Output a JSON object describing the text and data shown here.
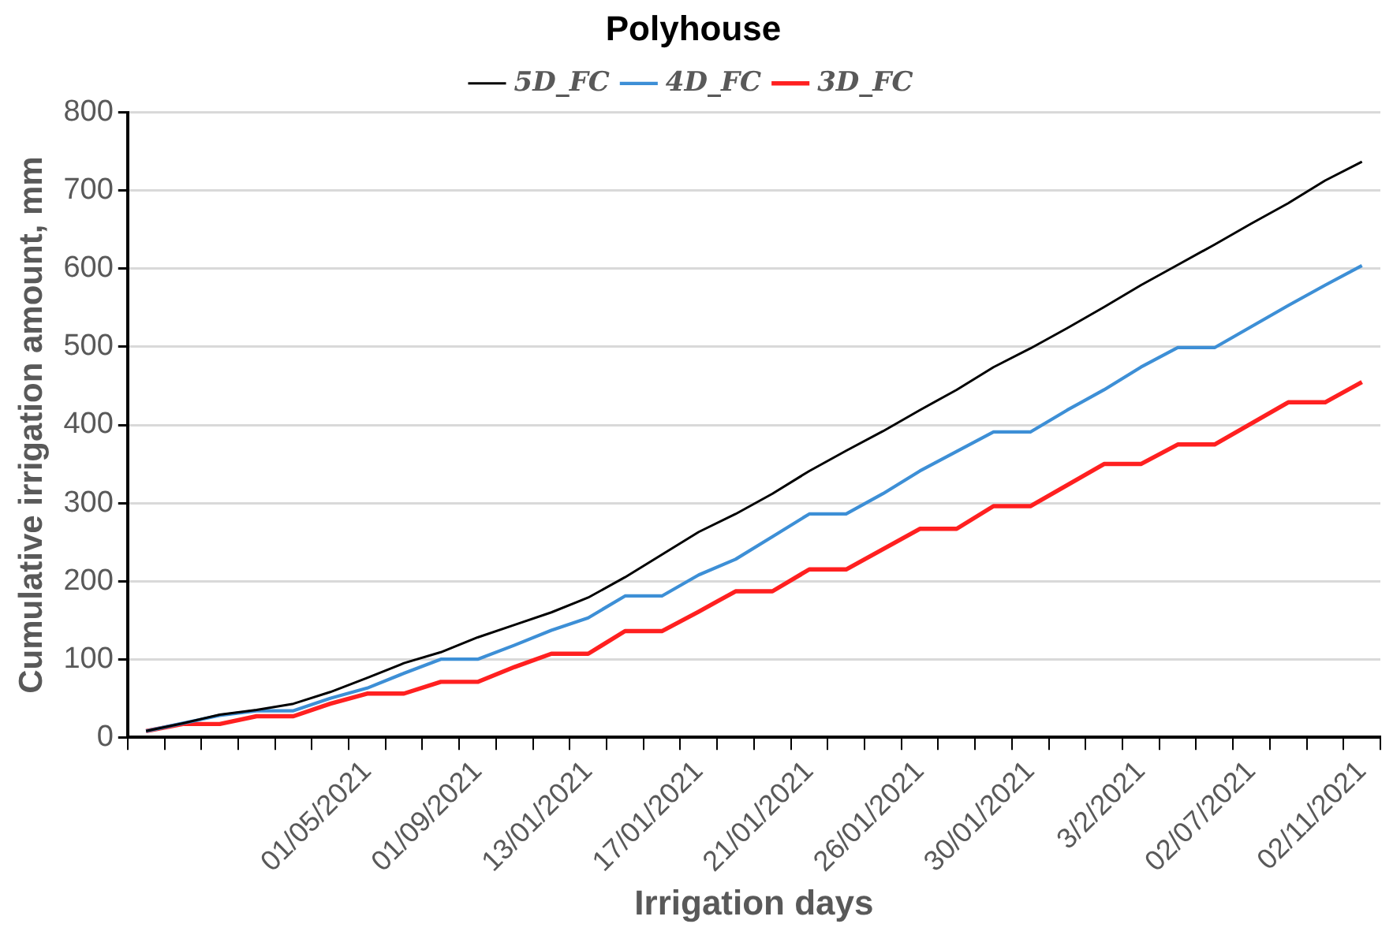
{
  "chart_data": {
    "type": "line",
    "title": "Polyhouse",
    "xlabel": "Irrigation days",
    "ylabel": "Cumulative irrigation amount, mm",
    "categories": [
      null,
      null,
      null,
      null,
      null,
      null,
      "01/05/2021",
      null,
      null,
      "01/09/2021",
      null,
      null,
      "13/01/2021",
      null,
      null,
      "17/01/2021",
      null,
      null,
      "21/01/2021",
      null,
      null,
      "26/01/2021",
      null,
      null,
      "30/01/2021",
      null,
      null,
      "3/2/2021",
      null,
      null,
      "02/07/2021",
      null,
      null,
      "02/11/2021"
    ],
    "series": [
      {
        "name": "5D_FC",
        "color": "#000000",
        "values": [
          8,
          18,
          29,
          35,
          43,
          58,
          76,
          95,
          109,
          128,
          144,
          160,
          179,
          205,
          234,
          263,
          286,
          312,
          341,
          367,
          392,
          419,
          445,
          474,
          498,
          524,
          551,
          579,
          605,
          631,
          658,
          684,
          713,
          737
        ]
      },
      {
        "name": "4D_FC",
        "color": "#3d8fd6",
        "values": [
          8,
          18,
          28,
          34,
          34,
          50,
          63,
          82,
          100,
          100,
          118,
          137,
          153,
          181,
          181,
          208,
          228,
          257,
          286,
          286,
          312,
          341,
          366,
          391,
          391,
          419,
          445,
          474,
          499,
          499,
          526,
          553,
          579,
          604
        ]
      },
      {
        "name": "3D_FC",
        "color": "#ff2020",
        "values": [
          8,
          17,
          17,
          27,
          27,
          43,
          56,
          56,
          71,
          71,
          90,
          107,
          107,
          136,
          136,
          161,
          187,
          187,
          215,
          215,
          241,
          267,
          267,
          296,
          296,
          323,
          350,
          350,
          375,
          375,
          402,
          429,
          429,
          455
        ]
      }
    ],
    "ylim": [
      0,
      800
    ],
    "yticks": [
      0,
      100,
      200,
      300,
      400,
      500,
      600,
      700,
      800
    ],
    "grid": "y",
    "legend": "top",
    "marker": "none",
    "line_style": "solid"
  }
}
